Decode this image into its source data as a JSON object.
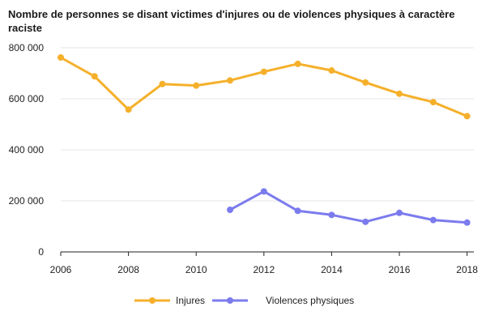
{
  "chart_data": {
    "type": "line",
    "title": "Nombre de personnes se disant victimes d'injures ou de violences physiques à caractère raciste",
    "xlabel": "",
    "ylabel": "",
    "x": [
      2006,
      2007,
      2008,
      2009,
      2010,
      2011,
      2012,
      2013,
      2014,
      2015,
      2016,
      2017,
      2018
    ],
    "x_ticks": [
      2006,
      2008,
      2010,
      2012,
      2014,
      2016,
      2018
    ],
    "x_tick_labels": [
      "2006",
      "2008",
      "2010",
      "2012",
      "2014",
      "2016",
      "2018"
    ],
    "xlim": [
      2006,
      2018.2
    ],
    "ylim": [
      0,
      800000
    ],
    "y_ticks": [
      0,
      200000,
      400000,
      600000,
      800000
    ],
    "y_tick_labels": [
      "0",
      "200 000",
      "400 000",
      "600 000",
      "800 000"
    ],
    "grid": true,
    "legend_position": "bottom",
    "series": [
      {
        "name": "Injures",
        "color": "#F5B02B",
        "values": [
          762000,
          688000,
          558000,
          658000,
          652000,
          672000,
          706000,
          737000,
          711000,
          664000,
          620000,
          587000,
          532000
        ]
      },
      {
        "name": "Violences physiques",
        "color": "#7B7BEE",
        "values": [
          null,
          null,
          null,
          null,
          null,
          165000,
          237000,
          161000,
          145000,
          118000,
          153000,
          125000,
          115000
        ]
      }
    ]
  }
}
